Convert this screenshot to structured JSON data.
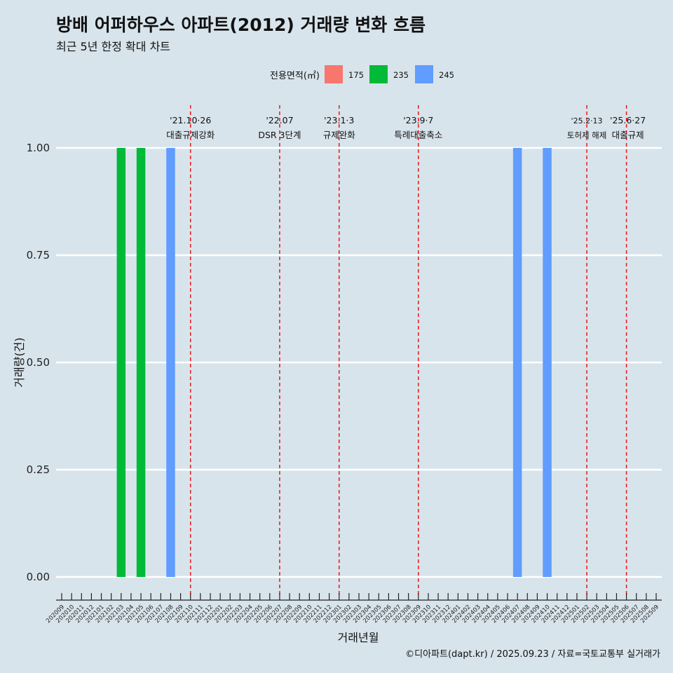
{
  "title": "방배 어퍼하우스 아파트(2012) 거래량 변화 흐름",
  "subtitle": "최근 5년 한정 확대 차트",
  "caption": "©디아파트(dapt.kr) / 2025.09.23 / 자료=국토교통부 실거래가",
  "colors": {
    "background": "#d8e4eb",
    "grid": "#ffffff",
    "event_line": "#e41a1c"
  },
  "chart_data": {
    "type": "bar",
    "xlabel": "거래년월",
    "ylabel": "거래량(건)",
    "ylim": [
      0,
      1
    ],
    "y_ticks": [
      "0.00",
      "0.25",
      "0.50",
      "0.75",
      "1.00"
    ],
    "grid": true,
    "legend": {
      "title": "전용면적(㎡)",
      "position": "top"
    },
    "categories": [
      "202009",
      "202010",
      "202011",
      "202012",
      "202101",
      "202102",
      "202103",
      "202104",
      "202105",
      "202106",
      "202107",
      "202108",
      "202109",
      "202110",
      "202111",
      "202112",
      "202201",
      "202202",
      "202203",
      "202204",
      "202205",
      "202206",
      "202207",
      "202208",
      "202209",
      "202210",
      "202211",
      "202212",
      "202301",
      "202302",
      "202303",
      "202304",
      "202305",
      "202306",
      "202307",
      "202308",
      "202309",
      "202310",
      "202311",
      "202312",
      "202401",
      "202402",
      "202403",
      "202404",
      "202405",
      "202406",
      "202407",
      "202408",
      "202409",
      "202410",
      "202411",
      "202412",
      "202501",
      "202502",
      "202503",
      "202504",
      "202505",
      "202506",
      "202507",
      "202508",
      "202509"
    ],
    "series": [
      {
        "name": "175",
        "color": "#f8766d",
        "points": []
      },
      {
        "name": "235",
        "color": "#00ba38",
        "points": [
          {
            "x": "202103",
            "y": 1
          },
          {
            "x": "202105",
            "y": 1
          }
        ]
      },
      {
        "name": "245",
        "color": "#619cff",
        "points": [
          {
            "x": "202108",
            "y": 1
          },
          {
            "x": "202407",
            "y": 1
          },
          {
            "x": "202410",
            "y": 1
          }
        ]
      }
    ],
    "events": [
      {
        "at": "202110",
        "date": "'21.10·26",
        "label": "대출규제강화"
      },
      {
        "at": "202207",
        "date": "'22.07",
        "label": "DSR 3단계"
      },
      {
        "at": "202301",
        "date": "'23.1·3",
        "label": "규제완화"
      },
      {
        "at": "202309",
        "date": "'23.9·7",
        "label": "특례대출축소"
      },
      {
        "at": "202502",
        "date": "'25.2·13",
        "label": "토허제 해제"
      },
      {
        "at": "202506",
        "date": "'25.6·27",
        "label": "대출규제"
      }
    ]
  }
}
